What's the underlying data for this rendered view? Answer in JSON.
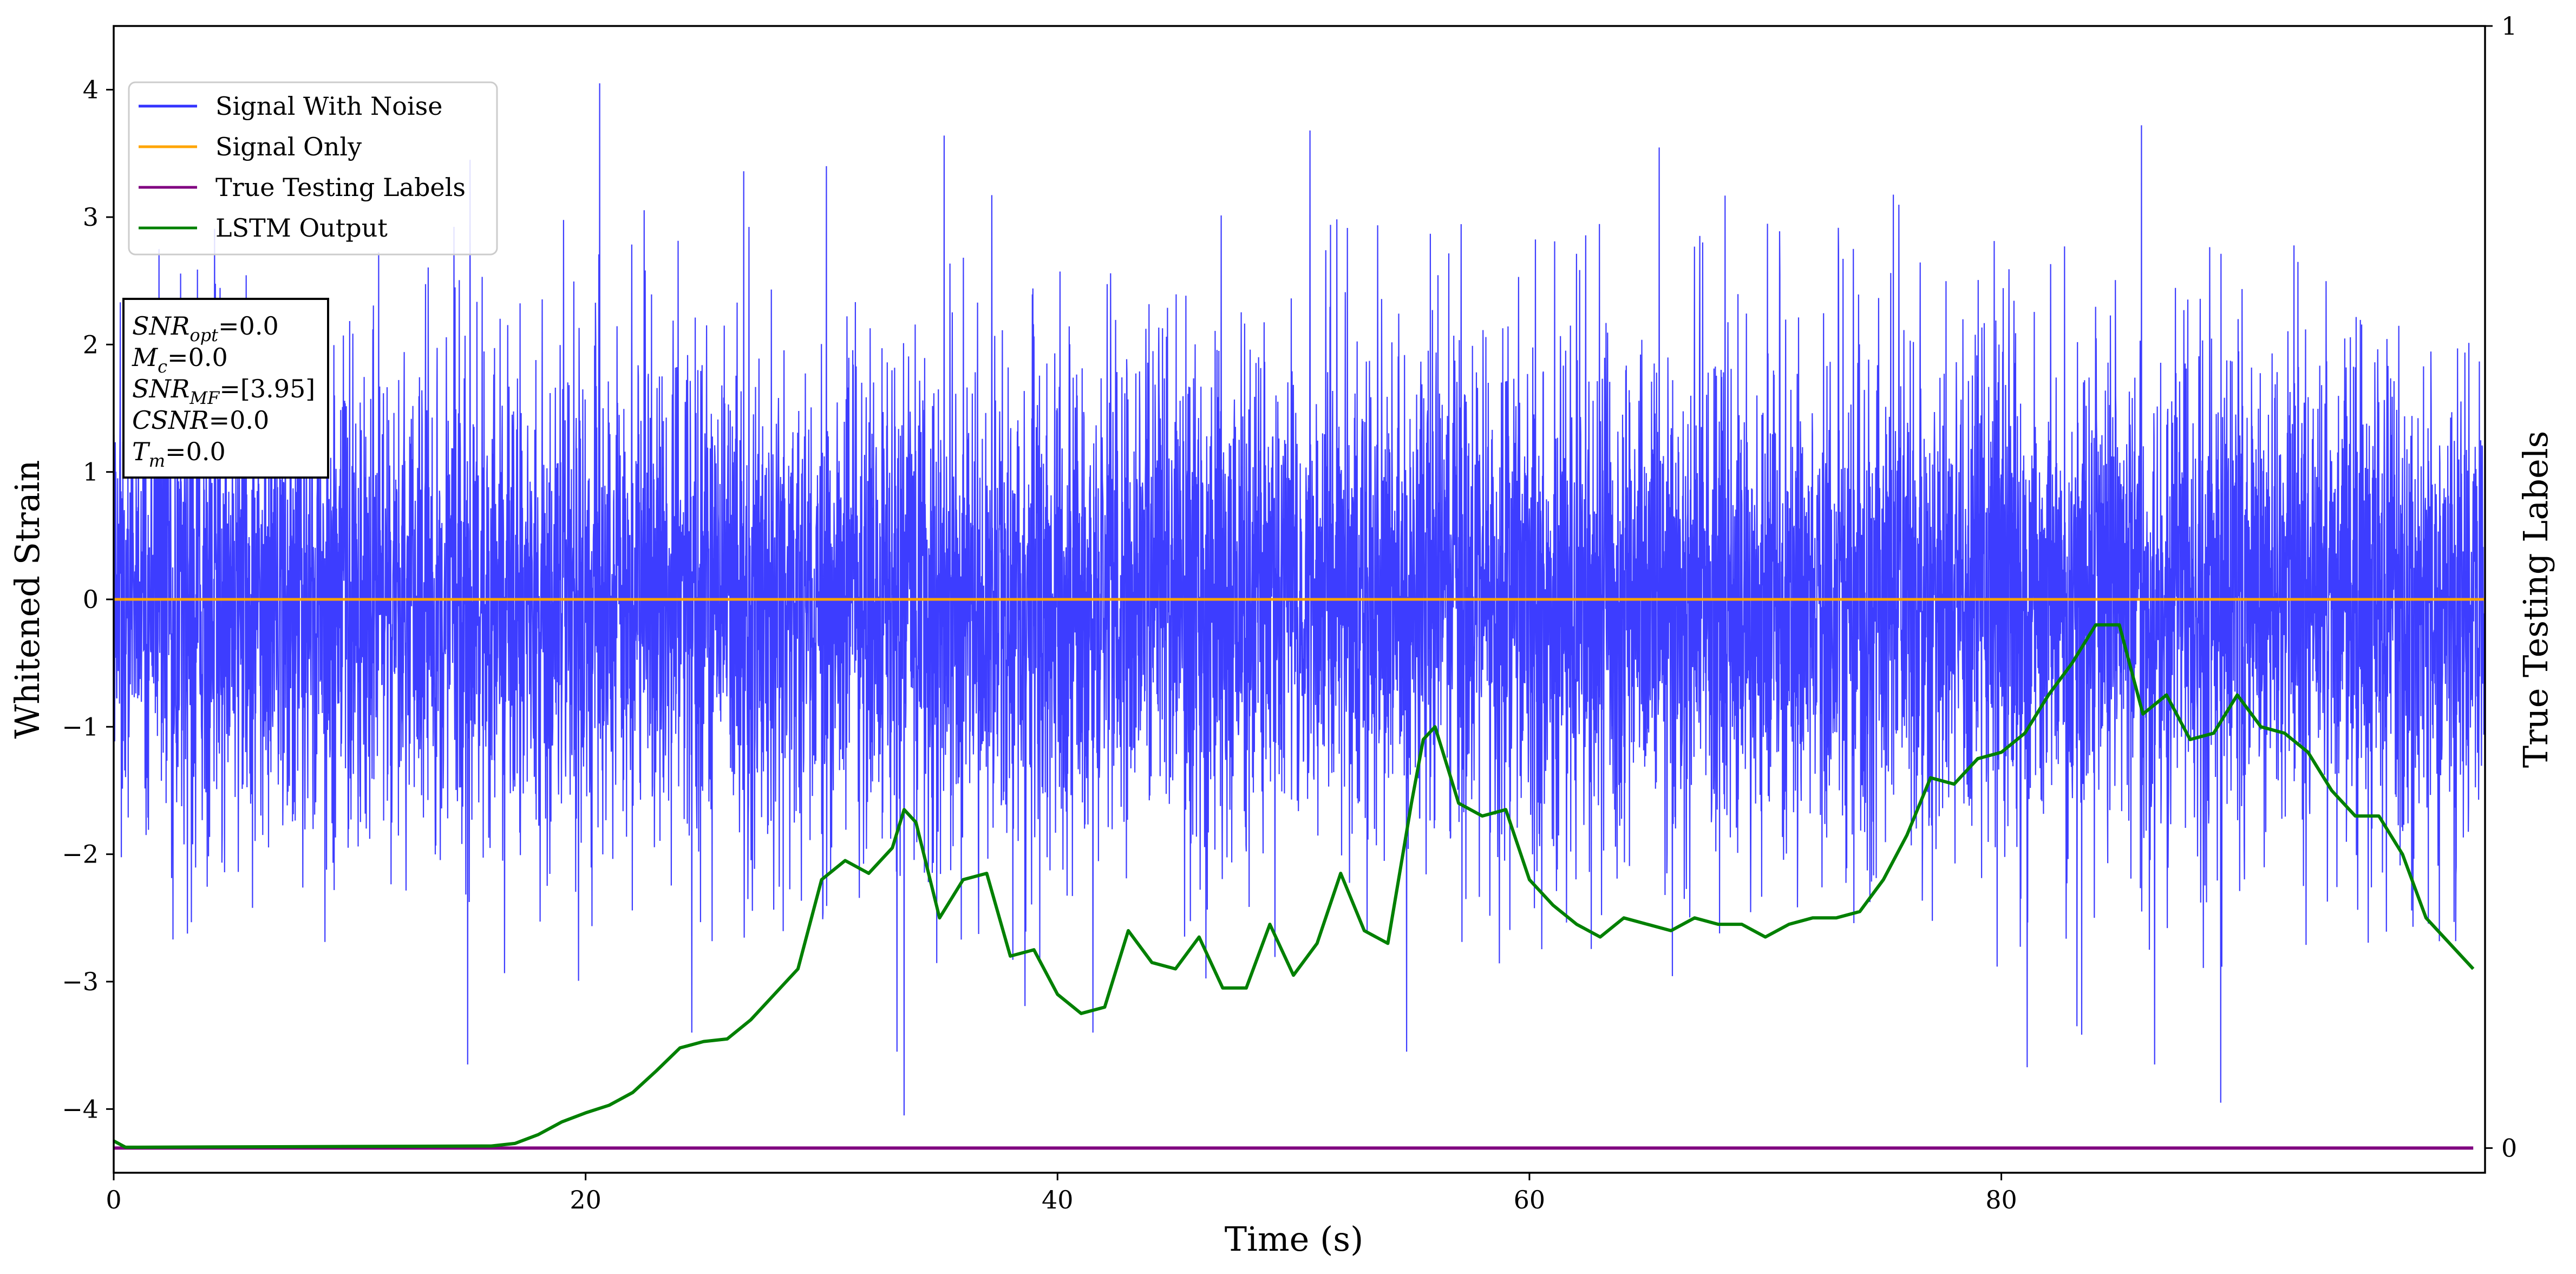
{
  "chart_data": {
    "type": "line",
    "xlabel": "Time (s)",
    "ylabel": "Whitened Strain",
    "ylabel_right": "True Testing Labels",
    "xlim": [
      0,
      100.5
    ],
    "ylim": [
      -4.5,
      4.5
    ],
    "ylim_right": [
      -0.022,
      1.0
    ],
    "xticks": [
      "0",
      "20",
      "40",
      "60",
      "80"
    ],
    "xtick_values": [
      0,
      20,
      40,
      60,
      80
    ],
    "yticks": [
      "−4",
      "−3",
      "−2",
      "−1",
      "0",
      "1",
      "2",
      "3",
      "4"
    ],
    "ytick_values": [
      -4,
      -3,
      -2,
      -1,
      0,
      1,
      2,
      3,
      4
    ],
    "yticks_right": [
      "0",
      "1"
    ],
    "ytick_values_right": [
      0,
      1
    ],
    "grid": false,
    "legend_position": "upper-left",
    "series": [
      {
        "name": "Signal With Noise",
        "color": "#3333ff",
        "axis": "left",
        "style": "dense noise, approximately ±1.7 with occasional spikes",
        "envelope_typical": [
          -1.7,
          1.7
        ],
        "spikes": [
          {
            "x": 20.6,
            "y": 4.05
          },
          {
            "x": 50.7,
            "y": 3.68
          },
          {
            "x": 35.2,
            "y": 3.64
          },
          {
            "x": 15.1,
            "y": 3.45
          },
          {
            "x": 26.7,
            "y": 3.36
          },
          {
            "x": 30.2,
            "y": 3.4
          },
          {
            "x": 33.5,
            "y": -4.05
          },
          {
            "x": 89.3,
            "y": -3.95
          },
          {
            "x": 15.0,
            "y": -3.65
          },
          {
            "x": 33.2,
            "y": -3.55
          },
          {
            "x": 54.8,
            "y": -3.55
          },
          {
            "x": 86.5,
            "y": -3.65
          },
          {
            "x": 24.5,
            "y": -3.4
          },
          {
            "x": 41.5,
            "y": -3.4
          },
          {
            "x": 83.2,
            "y": -3.35
          }
        ]
      },
      {
        "name": "Signal Only",
        "color": "#ffa500",
        "axis": "left",
        "x": [
          0,
          100.5
        ],
        "y": [
          0,
          0
        ]
      },
      {
        "name": "True Testing Labels",
        "color": "#800080",
        "axis": "right",
        "x": [
          0,
          100
        ],
        "y": [
          0,
          0
        ]
      },
      {
        "name": "LSTM Output",
        "color": "#008000",
        "axis": "left",
        "x": [
          0,
          0.5,
          16,
          17,
          18,
          19,
          20,
          21,
          22,
          23,
          24,
          25,
          26,
          27,
          28,
          29,
          30,
          31,
          32,
          33,
          33.5,
          34,
          35,
          36,
          37,
          38,
          39,
          40,
          41,
          42,
          43,
          44,
          45,
          46,
          47,
          48,
          49,
          50,
          51,
          52,
          53,
          54,
          55,
          55.5,
          56,
          57,
          58,
          59,
          60,
          61,
          62,
          63,
          64,
          65,
          66,
          67,
          68,
          69,
          70,
          71,
          72,
          73,
          74,
          75,
          76,
          77,
          78,
          79,
          80,
          81,
          82,
          83,
          84,
          85,
          86,
          87,
          88,
          89,
          90,
          91,
          92,
          93,
          94,
          95,
          96,
          97,
          98,
          99,
          100
        ],
        "y": [
          -4.25,
          -4.3,
          -4.29,
          -4.27,
          -4.2,
          -4.1,
          -4.03,
          -3.97,
          -3.87,
          -3.7,
          -3.52,
          -3.47,
          -3.45,
          -3.3,
          -3.1,
          -2.9,
          -2.2,
          -2.05,
          -2.15,
          -1.95,
          -1.65,
          -1.75,
          -2.5,
          -2.2,
          -2.15,
          -2.8,
          -2.75,
          -3.1,
          -3.25,
          -3.2,
          -2.6,
          -2.85,
          -2.9,
          -2.65,
          -3.05,
          -3.05,
          -2.55,
          -2.95,
          -2.7,
          -2.15,
          -2.6,
          -2.7,
          -1.6,
          -1.1,
          -1.0,
          -1.6,
          -1.7,
          -1.65,
          -2.2,
          -2.4,
          -2.55,
          -2.65,
          -2.5,
          -2.55,
          -2.6,
          -2.5,
          -2.55,
          -2.55,
          -2.65,
          -2.55,
          -2.5,
          -2.5,
          -2.45,
          -2.2,
          -1.85,
          -1.4,
          -1.45,
          -1.25,
          -1.2,
          -1.05,
          -0.75,
          -0.5,
          -0.2,
          -0.2,
          -0.9,
          -0.75,
          -1.1,
          -1.05,
          -0.75,
          -1.0,
          -1.05,
          -1.2,
          -1.5,
          -1.7,
          -1.7,
          -2.0,
          -2.5,
          -2.7,
          -2.9
        ]
      }
    ]
  },
  "annotation": {
    "lines": [
      {
        "main": "SNR",
        "sub": "opt",
        "rest": "=0.0"
      },
      {
        "main": "M",
        "sub": "c",
        "rest": "=0.0"
      },
      {
        "main": "SNR",
        "sub": "MF",
        "rest": "=[3.95]"
      },
      {
        "main": "CSNR",
        "sub": "",
        "rest": "=0.0"
      },
      {
        "main": "T",
        "sub": "m",
        "rest": "=0.0"
      }
    ]
  }
}
